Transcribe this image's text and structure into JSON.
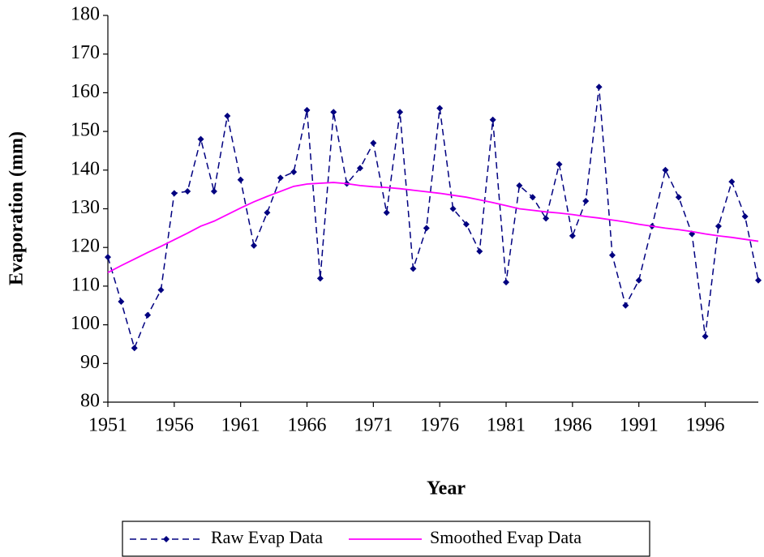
{
  "chart_data": {
    "type": "line",
    "x_label": "Year",
    "y_label": "Evaporation (mm)",
    "x": [
      1951,
      1952,
      1953,
      1954,
      1955,
      1956,
      1957,
      1958,
      1959,
      1960,
      1961,
      1962,
      1963,
      1964,
      1965,
      1966,
      1967,
      1968,
      1969,
      1970,
      1971,
      1972,
      1973,
      1974,
      1975,
      1976,
      1977,
      1978,
      1979,
      1980,
      1981,
      1982,
      1983,
      1984,
      1985,
      1986,
      1987,
      1988,
      1989,
      1990,
      1991,
      1992,
      1993,
      1994,
      1995,
      1996,
      1997,
      1998,
      1999,
      2000
    ],
    "series": [
      {
        "name": "Raw Evap Data",
        "color": "#000080",
        "dashed": true,
        "markers": true,
        "values": [
          117.5,
          106,
          94,
          102.5,
          109,
          134,
          134.5,
          148,
          134.5,
          154,
          137.5,
          120.5,
          129,
          138,
          139.5,
          155.5,
          112,
          155,
          136.5,
          140.5,
          147,
          129,
          155,
          114.5,
          125,
          156,
          130,
          126,
          119,
          153,
          111,
          136,
          133,
          127.5,
          141.5,
          123,
          132,
          161.5,
          118,
          105,
          111.5,
          125.5,
          140,
          133,
          123.5,
          97,
          125.5,
          137,
          128,
          111.5
        ]
      },
      {
        "name": "Smoothed Evap Data",
        "color": "#ff00ff",
        "dashed": false,
        "markers": false,
        "values": [
          113.5,
          115.3,
          117,
          118.7,
          120.3,
          122,
          123.7,
          125.5,
          126.8,
          128.5,
          130.2,
          131.8,
          133.2,
          134.5,
          135.8,
          136.4,
          136.6,
          136.8,
          136.5,
          136,
          135.7,
          135.5,
          135.2,
          134.8,
          134.4,
          134,
          133.5,
          133,
          132.3,
          131.6,
          130.8,
          130,
          129.6,
          129.2,
          128.9,
          128.5,
          128,
          127.6,
          127.1,
          126.6,
          126,
          125.5,
          125,
          124.6,
          124.1,
          123.5,
          123,
          122.6,
          122.1,
          121.6
        ]
      }
    ],
    "xlim": [
      1951,
      2000
    ],
    "xticks": [
      1951,
      1956,
      1961,
      1966,
      1971,
      1976,
      1981,
      1986,
      1991,
      1996
    ],
    "ylim": [
      80,
      180
    ],
    "yticks": [
      80,
      90,
      100,
      110,
      120,
      130,
      140,
      150,
      160,
      170,
      180
    ],
    "grid": false,
    "legend": "bottom"
  }
}
